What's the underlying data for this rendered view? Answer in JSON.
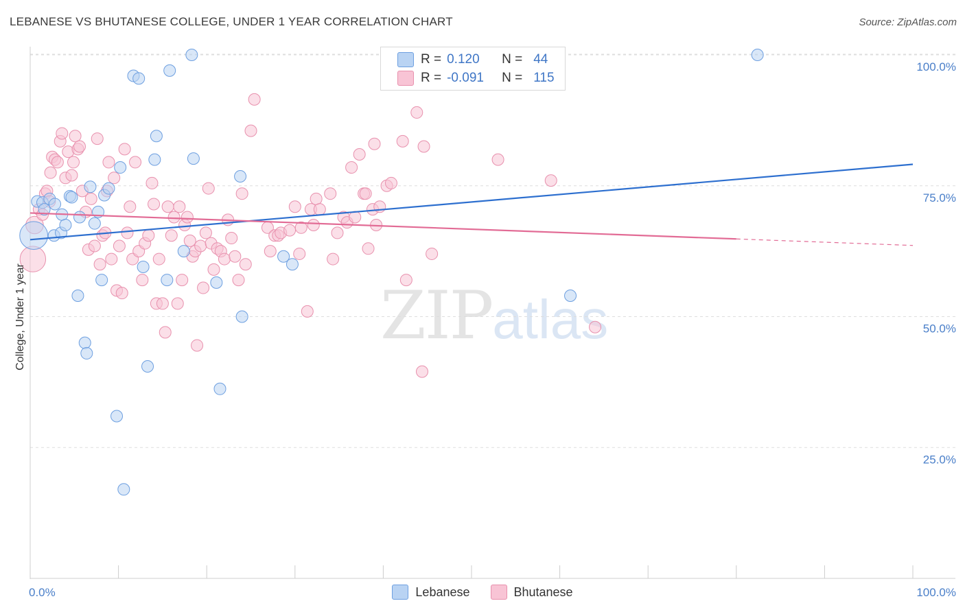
{
  "title": "LEBANESE VS BHUTANESE COLLEGE, UNDER 1 YEAR CORRELATION CHART",
  "source": "Source: ZipAtlas.com",
  "watermark": {
    "zip": "ZIP",
    "atlas": "atlas"
  },
  "legend": {
    "lebanese": {
      "r_label": "R =",
      "r_value": "0.120",
      "n_label": "N =",
      "n_value": "44"
    },
    "bhutanese": {
      "r_label": "R =",
      "r_value": "-0.091",
      "n_label": "N =",
      "n_value": "115"
    }
  },
  "colors": {
    "lebanese_fill": "#b9d3f3",
    "lebanese_stroke": "#6d9fe0",
    "lebanese_line": "#2d6fcf",
    "bhutanese_fill": "#f8c4d5",
    "bhutanese_stroke": "#e890ad",
    "bhutanese_line": "#e26b95",
    "grid": "#dddddd",
    "tick_text": "#4a7fc9"
  },
  "chart_data": {
    "type": "scatter",
    "title": "LEBANESE VS BHUTANESE COLLEGE, UNDER 1 YEAR CORRELATION CHART",
    "xlabel": "",
    "ylabel": "College, Under 1 year",
    "xlim": [
      0,
      100
    ],
    "ylim": [
      0,
      100
    ],
    "x_tick_labels": [
      "0.0%",
      "100.0%"
    ],
    "y_ticks": [
      25,
      50,
      75,
      100
    ],
    "y_tick_labels": [
      "25.0%",
      "50.0%",
      "75.0%",
      "100.0%"
    ],
    "grid": true,
    "legend_placement": "top-center",
    "series": [
      {
        "name": "Lebanese",
        "r": 0.12,
        "n": 44,
        "trend": {
          "x": [
            0,
            100
          ],
          "y": [
            64.7,
            79.1
          ],
          "solid_until": 100
        },
        "points": [
          [
            0.4,
            65.5,
            2.4
          ],
          [
            0.8,
            72.0,
            1
          ],
          [
            1.4,
            71.8,
            1
          ],
          [
            1.6,
            70.5,
            1
          ],
          [
            2.2,
            72.5,
            1
          ],
          [
            2.8,
            71.5,
            1
          ],
          [
            2.7,
            65.5,
            1
          ],
          [
            3.5,
            66.0,
            1
          ],
          [
            3.6,
            69.5,
            1
          ],
          [
            4.0,
            67.5,
            1
          ],
          [
            4.5,
            73.0,
            1
          ],
          [
            4.7,
            72.8,
            1
          ],
          [
            5.4,
            54.0,
            1
          ],
          [
            5.6,
            69.0,
            1
          ],
          [
            6.2,
            45.0,
            1
          ],
          [
            6.4,
            43.0,
            1
          ],
          [
            6.8,
            74.8,
            1
          ],
          [
            7.3,
            67.8,
            1
          ],
          [
            7.7,
            70.0,
            1
          ],
          [
            8.1,
            57.0,
            1
          ],
          [
            8.4,
            73.2,
            1
          ],
          [
            8.9,
            74.5,
            1
          ],
          [
            9.8,
            31.0,
            1
          ],
          [
            10.2,
            78.5,
            1
          ],
          [
            10.6,
            17.0,
            1
          ],
          [
            11.7,
            96.0,
            1
          ],
          [
            12.3,
            95.5,
            1
          ],
          [
            12.8,
            59.5,
            1
          ],
          [
            13.3,
            40.5,
            1
          ],
          [
            14.1,
            80.0,
            1
          ],
          [
            14.3,
            84.5,
            1
          ],
          [
            15.5,
            57.0,
            1
          ],
          [
            15.8,
            97.0,
            1
          ],
          [
            17.4,
            62.5,
            1
          ],
          [
            18.3,
            100.0,
            1
          ],
          [
            18.5,
            80.2,
            1
          ],
          [
            21.1,
            56.5,
            1
          ],
          [
            21.5,
            36.2,
            1
          ],
          [
            23.8,
            76.8,
            1
          ],
          [
            24.0,
            50.0,
            1
          ],
          [
            28.7,
            61.5,
            1
          ],
          [
            29.7,
            60.0,
            1
          ],
          [
            61.2,
            54.0,
            1
          ],
          [
            82.4,
            100.0,
            1
          ]
        ]
      },
      {
        "name": "Bhutanese",
        "r": -0.091,
        "n": 115,
        "trend": {
          "x": [
            0,
            100
          ],
          "y": [
            69.8,
            63.6
          ],
          "solid_until": 80
        },
        "points": [
          [
            0.3,
            61.0,
            2.2
          ],
          [
            0.5,
            67.5,
            1.5
          ],
          [
            1.0,
            70.5,
            1
          ],
          [
            1.4,
            69.5,
            1
          ],
          [
            1.7,
            73.5,
            1
          ],
          [
            1.9,
            74.0,
            1
          ],
          [
            2.2,
            72.0,
            1
          ],
          [
            2.3,
            77.5,
            1
          ],
          [
            2.5,
            80.5,
            1
          ],
          [
            2.8,
            80.0,
            1
          ],
          [
            3.1,
            79.5,
            1
          ],
          [
            3.4,
            83.5,
            1
          ],
          [
            3.6,
            85.0,
            1
          ],
          [
            4.0,
            76.5,
            1
          ],
          [
            4.3,
            81.5,
            1
          ],
          [
            4.7,
            77.0,
            1
          ],
          [
            4.9,
            79.5,
            1
          ],
          [
            5.1,
            84.5,
            1
          ],
          [
            5.4,
            82.0,
            1
          ],
          [
            5.6,
            82.5,
            1
          ],
          [
            5.9,
            74.0,
            1
          ],
          [
            6.3,
            70.0,
            1
          ],
          [
            6.6,
            62.8,
            1
          ],
          [
            6.9,
            72.5,
            1
          ],
          [
            7.3,
            63.5,
            1
          ],
          [
            7.6,
            84.0,
            1
          ],
          [
            7.9,
            60.0,
            1
          ],
          [
            8.2,
            65.5,
            1
          ],
          [
            8.5,
            66.0,
            1
          ],
          [
            8.7,
            74.0,
            1
          ],
          [
            8.9,
            79.5,
            1
          ],
          [
            9.2,
            61.0,
            1
          ],
          [
            9.5,
            76.5,
            1
          ],
          [
            9.8,
            55.0,
            1
          ],
          [
            10.1,
            63.5,
            1
          ],
          [
            10.4,
            54.5,
            1
          ],
          [
            10.7,
            82.0,
            1
          ],
          [
            11.0,
            66.0,
            1
          ],
          [
            11.3,
            71.0,
            1
          ],
          [
            11.6,
            61.0,
            1
          ],
          [
            11.9,
            79.5,
            1
          ],
          [
            12.3,
            62.5,
            1
          ],
          [
            12.7,
            57.0,
            1
          ],
          [
            13.0,
            64.0,
            1
          ],
          [
            13.4,
            65.5,
            1
          ],
          [
            13.8,
            75.5,
            1
          ],
          [
            14.0,
            71.5,
            1
          ],
          [
            14.3,
            52.5,
            1
          ],
          [
            14.6,
            61.0,
            1
          ],
          [
            15.0,
            52.5,
            1
          ],
          [
            15.3,
            47.0,
            1
          ],
          [
            15.6,
            71.0,
            1
          ],
          [
            16.0,
            65.5,
            1
          ],
          [
            16.3,
            69.0,
            1
          ],
          [
            16.7,
            52.5,
            1
          ],
          [
            16.9,
            71.0,
            1
          ],
          [
            17.2,
            57.0,
            1
          ],
          [
            17.5,
            67.5,
            1
          ],
          [
            17.8,
            69.0,
            1
          ],
          [
            18.1,
            64.5,
            1
          ],
          [
            18.4,
            61.5,
            1
          ],
          [
            18.7,
            62.5,
            1
          ],
          [
            18.9,
            44.5,
            1
          ],
          [
            19.3,
            63.5,
            1
          ],
          [
            19.6,
            55.5,
            1
          ],
          [
            19.9,
            66.0,
            1
          ],
          [
            20.2,
            74.5,
            1
          ],
          [
            20.5,
            64.0,
            1
          ],
          [
            20.8,
            59.0,
            1
          ],
          [
            21.2,
            63.0,
            1
          ],
          [
            21.6,
            62.5,
            1
          ],
          [
            22.0,
            61.0,
            1
          ],
          [
            22.4,
            68.5,
            1
          ],
          [
            22.8,
            65.0,
            1
          ],
          [
            23.2,
            61.5,
            1
          ],
          [
            23.6,
            57.0,
            1
          ],
          [
            24.0,
            73.5,
            1
          ],
          [
            24.4,
            60.0,
            1
          ],
          [
            25.0,
            85.5,
            1
          ],
          [
            25.4,
            91.5,
            1
          ],
          [
            26.9,
            67.0,
            1
          ],
          [
            27.2,
            62.5,
            1
          ],
          [
            27.7,
            65.5,
            1
          ],
          [
            28.1,
            65.5,
            1
          ],
          [
            28.4,
            66.0,
            1
          ],
          [
            29.4,
            66.5,
            1
          ],
          [
            30.0,
            71.0,
            1
          ],
          [
            30.5,
            62.0,
            1
          ],
          [
            30.7,
            67.0,
            1
          ],
          [
            31.4,
            51.0,
            1
          ],
          [
            31.8,
            70.5,
            1
          ],
          [
            32.1,
            67.5,
            1
          ],
          [
            32.4,
            72.5,
            1
          ],
          [
            32.8,
            70.5,
            1
          ],
          [
            34.0,
            73.5,
            1
          ],
          [
            34.3,
            61.0,
            1
          ],
          [
            34.8,
            66.0,
            1
          ],
          [
            35.5,
            69.0,
            1
          ],
          [
            35.9,
            68.0,
            1
          ],
          [
            36.4,
            78.5,
            1
          ],
          [
            36.8,
            69.0,
            1
          ],
          [
            37.3,
            81.0,
            1
          ],
          [
            37.8,
            73.5,
            1
          ],
          [
            38.0,
            73.5,
            1
          ],
          [
            38.3,
            63.0,
            1
          ],
          [
            38.8,
            70.5,
            1
          ],
          [
            39.2,
            67.5,
            1
          ],
          [
            39.6,
            71.0,
            1
          ],
          [
            40.4,
            75.0,
            1
          ],
          [
            40.9,
            75.5,
            1
          ],
          [
            42.6,
            57.0,
            1
          ],
          [
            43.8,
            89.0,
            1
          ],
          [
            44.4,
            39.5,
            1
          ],
          [
            44.6,
            82.5,
            1
          ],
          [
            45.5,
            62.0,
            1
          ],
          [
            53.0,
            80.0,
            1
          ],
          [
            59.0,
            76.0,
            1
          ],
          [
            64.0,
            48.0,
            1
          ],
          [
            42.2,
            83.5,
            1
          ],
          [
            39.0,
            83.0,
            1
          ]
        ]
      }
    ]
  },
  "bottom_legend": [
    "Lebanese",
    "Bhutanese"
  ]
}
